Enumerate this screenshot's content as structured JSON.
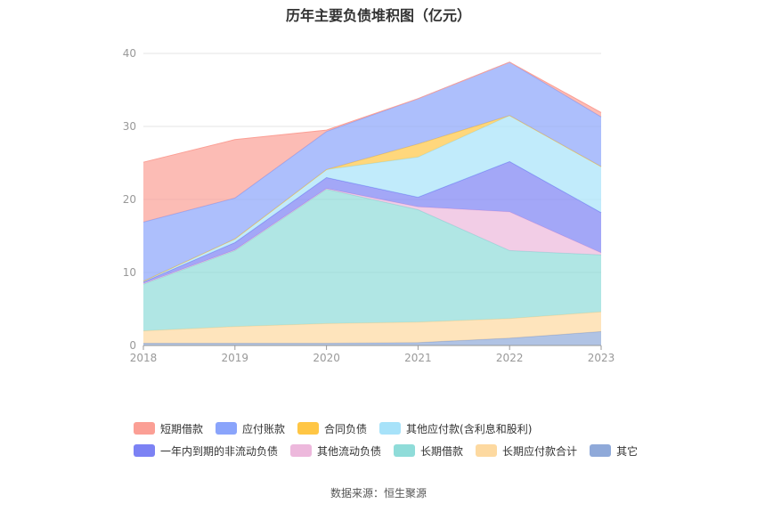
{
  "chart_data": {
    "type": "area",
    "stacked": true,
    "title": "历年主要负债堆积图（亿元）",
    "source": "数据来源：恒生聚源",
    "x": [
      "2018",
      "2019",
      "2020",
      "2021",
      "2022",
      "2023"
    ],
    "ylim": [
      0,
      40
    ],
    "yticks": [
      0,
      10,
      20,
      30,
      40
    ],
    "grid": true,
    "legend_position": "bottom",
    "series": [
      {
        "name": "其它",
        "color": "#8fa9d9",
        "values": [
          0.3,
          0.3,
          0.3,
          0.4,
          1.0,
          1.9
        ]
      },
      {
        "name": "长期应付款合计",
        "color": "#fdd9a0",
        "values": [
          1.7,
          2.3,
          2.7,
          2.8,
          2.7,
          2.7
        ]
      },
      {
        "name": "长期借款",
        "color": "#8fdcd9",
        "values": [
          6.4,
          10.4,
          18.4,
          15.4,
          9.3,
          7.8
        ]
      },
      {
        "name": "其他流动负债",
        "color": "#edb8dc",
        "values": [
          0.1,
          0.1,
          0.1,
          0.4,
          5.3,
          0.3
        ]
      },
      {
        "name": "一年内到期的非流动负债",
        "color": "#7c82f4",
        "values": [
          0.2,
          1.0,
          1.5,
          1.3,
          6.9,
          5.5
        ]
      },
      {
        "name": "其他应付款(含利息和股利)",
        "color": "#a7e2f9",
        "values": [
          0.1,
          0.5,
          1.1,
          5.5,
          6.3,
          6.3
        ]
      },
      {
        "name": "合同负债",
        "color": "#ffc645",
        "values": [
          0.0,
          0.0,
          0.0,
          1.8,
          0.0,
          0.0
        ]
      },
      {
        "name": "应付账款",
        "color": "#8aa4fb",
        "values": [
          8.1,
          5.6,
          5.2,
          6.2,
          7.3,
          6.8
        ]
      },
      {
        "name": "短期借款",
        "color": "#fb9f95",
        "values": [
          8.2,
          8.0,
          0.2,
          0.0,
          0.0,
          0.6
        ]
      }
    ]
  },
  "legend_rows": [
    [
      0,
      1,
      2,
      3
    ],
    [
      4,
      5,
      6,
      7,
      8
    ]
  ],
  "legend_labels": [
    "短期借款",
    "应付账款",
    "合同负债",
    "其他应付款(含利息和股利)",
    "一年内到期的非流动负债",
    "其他流动负债",
    "长期借款",
    "长期应付款合计",
    "其它"
  ],
  "legend_colors": [
    "#fb9f95",
    "#8aa4fb",
    "#ffc645",
    "#a7e2f9",
    "#7c82f4",
    "#edb8dc",
    "#8fdcd9",
    "#fdd9a0",
    "#8fa9d9"
  ]
}
